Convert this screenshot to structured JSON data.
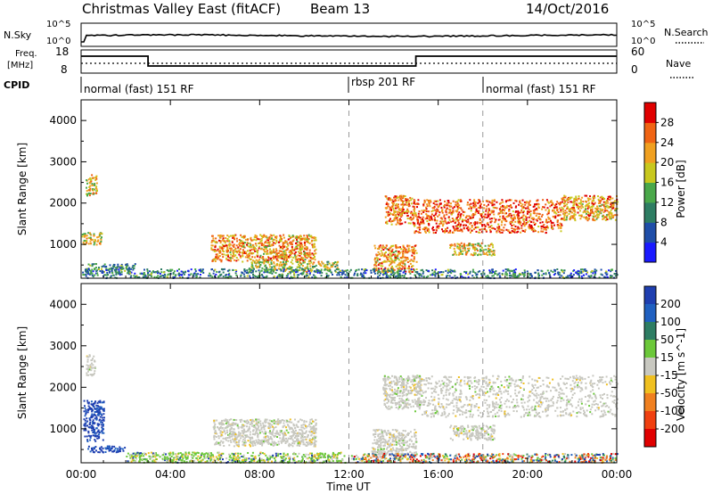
{
  "header": {
    "station": "Christmas Valley East (fitACF)",
    "beam": "Beam 13",
    "date": "14/Oct/2016"
  },
  "noise_panel": {
    "left_label": "N.Sky",
    "right_label": "N.Search",
    "y_ticks_left": [
      "10^5",
      "10^0"
    ],
    "y_ticks_right": [
      "10^5",
      "10^0"
    ]
  },
  "freq_panel": {
    "left_label_1": "Freq.",
    "left_label_2": "[MHz]",
    "right_label": "Nave",
    "y_ticks_left": [
      "18",
      "8"
    ],
    "y_ticks_right": [
      "60",
      "0"
    ]
  },
  "cpid": {
    "label": "CPID",
    "segments": [
      {
        "text": "normal (fast) 151 RF",
        "start_hour": 0
      },
      {
        "text": "rbsp 201 RF",
        "start_hour": 12
      },
      {
        "text": "normal (fast) 151 RF",
        "start_hour": 18
      }
    ]
  },
  "chart_data": [
    {
      "type": "heatmap",
      "quantity": "Power",
      "ylabel": "Slant Range [km]",
      "xlabel": "Time UT",
      "xlim_hours": [
        0,
        24
      ],
      "ylim": [
        180,
        4500
      ],
      "y_ticks": [
        1000,
        2000,
        3000,
        4000
      ],
      "colorbar_label": "Power [dB]",
      "colorbar_ticks": [
        "4",
        "8",
        "12",
        "16",
        "20",
        "24",
        "28"
      ],
      "colorbar_range": [
        0,
        30
      ],
      "colors": [
        "#1a1aff",
        "#1f4ea8",
        "#2e7d63",
        "#4aa84a",
        "#c8c81e",
        "#f0a020",
        "#f06414",
        "#e00000"
      ],
      "dashed_lines_hours": [
        12,
        18
      ],
      "features": [
        {
          "t0": 0.2,
          "t1": 0.7,
          "r0": 2200,
          "r1": 2700,
          "level": 0.6
        },
        {
          "t0": 0.0,
          "t1": 0.9,
          "r0": 1000,
          "r1": 1300,
          "level": 0.6
        },
        {
          "t0": 0.2,
          "t1": 2.4,
          "r0": 400,
          "r1": 550,
          "level": 0.35
        },
        {
          "t0": 5.8,
          "t1": 10.5,
          "r0": 600,
          "r1": 1250,
          "level": 0.7
        },
        {
          "t0": 7.5,
          "t1": 11.5,
          "r0": 350,
          "r1": 600,
          "level": 0.55
        },
        {
          "t0": 13.1,
          "t1": 15.0,
          "r0": 350,
          "r1": 1000,
          "level": 0.7
        },
        {
          "t0": 13.6,
          "t1": 14.9,
          "r0": 1500,
          "r1": 2200,
          "level": 0.75
        },
        {
          "t0": 14.9,
          "t1": 21.5,
          "r0": 1300,
          "r1": 2100,
          "level": 0.82
        },
        {
          "t0": 21.5,
          "t1": 24.0,
          "r0": 1600,
          "r1": 2200,
          "level": 0.7
        },
        {
          "t0": 16.5,
          "t1": 18.5,
          "r0": 750,
          "r1": 1050,
          "level": 0.6
        },
        {
          "t0": 0.0,
          "t1": 24.0,
          "r0": 200,
          "r1": 420,
          "level": 0.3
        }
      ]
    },
    {
      "type": "heatmap",
      "quantity": "Velocity",
      "ylabel": "Slant Range [km]",
      "xlabel": "Time UT",
      "xlim_hours": [
        0,
        24
      ],
      "ylim": [
        180,
        4500
      ],
      "y_ticks": [
        1000,
        2000,
        3000,
        4000
      ],
      "x_tick_labels": [
        "00:00",
        "04:00",
        "08:00",
        "12:00",
        "16:00",
        "20:00",
        "00:00"
      ],
      "colorbar_label": "Velocity [m s^-1]",
      "colorbar_ticks": [
        "200",
        "100",
        "50",
        "15",
        "-15",
        "-50",
        "-100",
        "-200"
      ],
      "colorbar_range": [
        -250,
        250
      ],
      "colors": [
        "#1f3fb0",
        "#2060c0",
        "#2e7d63",
        "#6cc83a",
        "#c8c8c0",
        "#f0c020",
        "#f08020",
        "#f04010",
        "#e00000"
      ],
      "dashed_lines_hours": [
        12,
        18
      ],
      "features": [
        {
          "t0": 0.2,
          "t1": 0.6,
          "r0": 2300,
          "r1": 2800,
          "kind": "gray"
        },
        {
          "t0": 0.1,
          "t1": 1.0,
          "r0": 700,
          "r1": 1700,
          "kind": "blue"
        },
        {
          "t0": 0.2,
          "t1": 2.0,
          "r0": 450,
          "r1": 600,
          "kind": "blue"
        },
        {
          "t0": 2.0,
          "t1": 11.8,
          "r0": 200,
          "r1": 450,
          "kind": "green"
        },
        {
          "t0": 5.9,
          "t1": 10.5,
          "r0": 600,
          "r1": 1250,
          "kind": "gray"
        },
        {
          "t0": 13.0,
          "t1": 15.0,
          "r0": 350,
          "r1": 1000,
          "kind": "gray"
        },
        {
          "t0": 13.5,
          "t1": 15.2,
          "r0": 1500,
          "r1": 2300,
          "kind": "gray"
        },
        {
          "t0": 14.9,
          "t1": 24.0,
          "r0": 1300,
          "r1": 2300,
          "kind": "gray"
        },
        {
          "t0": 16.5,
          "t1": 18.5,
          "r0": 750,
          "r1": 1100,
          "kind": "gray"
        },
        {
          "t0": 12.0,
          "t1": 24.0,
          "r0": 200,
          "r1": 420,
          "kind": "mixed"
        }
      ]
    }
  ]
}
